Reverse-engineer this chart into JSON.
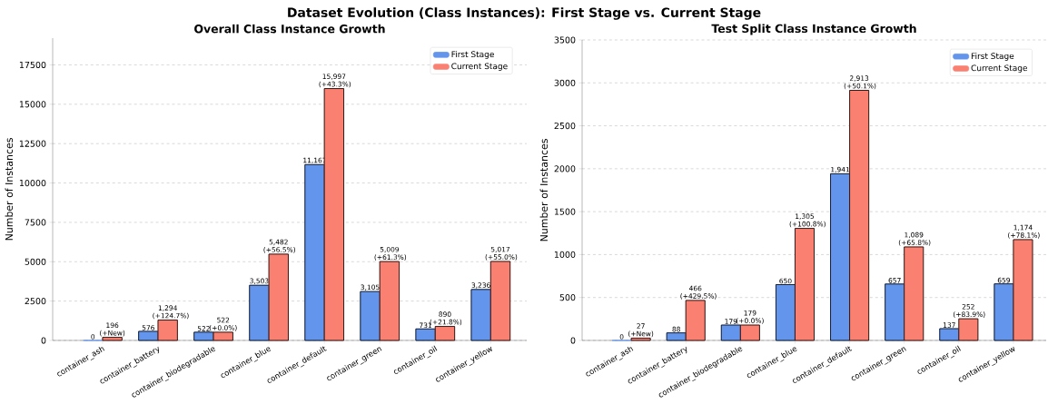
{
  "chart_data": [
    {
      "type": "bar",
      "title": "Overall Class Instance Growth",
      "ylabel": "Number of Instances",
      "annotations": [
        "Dataset Evolution (Class Instances): First Stage vs. Current Stage"
      ],
      "categories": [
        "container_ash",
        "container_battery",
        "container_biodegradable",
        "container_blue",
        "container_default",
        "container_green",
        "container_oil",
        "container_yellow"
      ],
      "series": [
        {
          "name": "First Stage",
          "color": "#6495ed",
          "values": [
            0,
            576,
            522,
            3503,
            11167,
            3105,
            731,
            3236
          ],
          "value_labels": [
            "0",
            "576",
            "522",
            "3,503",
            "11,167",
            "3,105",
            "731",
            "3,236"
          ]
        },
        {
          "name": "Current Stage",
          "color": "#fa8072",
          "values": [
            196,
            1294,
            522,
            5482,
            15997,
            5009,
            890,
            5017
          ],
          "value_labels": [
            "196 (+New)",
            "1,294 (+124.7%)",
            "522 (+0.0%)",
            "5,482 (+56.5%)",
            "15,997 (+43.3%)",
            "5,009 (+61.3%)",
            "890 (+21.8%)",
            "5,017 (+55.0%)"
          ]
        }
      ],
      "ylim": [
        0,
        19200
      ],
      "yticks": [
        0,
        2500,
        5000,
        7500,
        10000,
        12500,
        15000,
        17500
      ],
      "grid": "y",
      "legend": "top right"
    },
    {
      "type": "bar",
      "title": "Test Split Class Instance Growth",
      "ylabel": "Number of Instances",
      "categories": [
        "container_ash",
        "container_battery",
        "container_biodegradable",
        "container_blue",
        "container_default",
        "container_green",
        "container_oil",
        "container_yellow"
      ],
      "series": [
        {
          "name": "First Stage",
          "color": "#6495ed",
          "values": [
            0,
            88,
            179,
            650,
            1941,
            657,
            137,
            659
          ],
          "value_labels": [
            "0",
            "88",
            "179",
            "650",
            "1,941",
            "657",
            "137",
            "659"
          ]
        },
        {
          "name": "Current Stage",
          "color": "#fa8072",
          "values": [
            27,
            466,
            179,
            1305,
            2913,
            1089,
            252,
            1174
          ],
          "value_labels": [
            "27 (+New)",
            "466 (+429.5%)",
            "179 (+0.0%)",
            "1,305 (+100.8%)",
            "2,913 (+50.1%)",
            "1,089 (+65.8%)",
            "252 (+83.9%)",
            "1,174 (+78.1%)"
          ]
        }
      ],
      "ylim": [
        0,
        3500
      ],
      "yticks": [
        0,
        500,
        1000,
        1500,
        2000,
        2500,
        3000,
        3500
      ],
      "grid": "y",
      "legend": "top right"
    }
  ]
}
